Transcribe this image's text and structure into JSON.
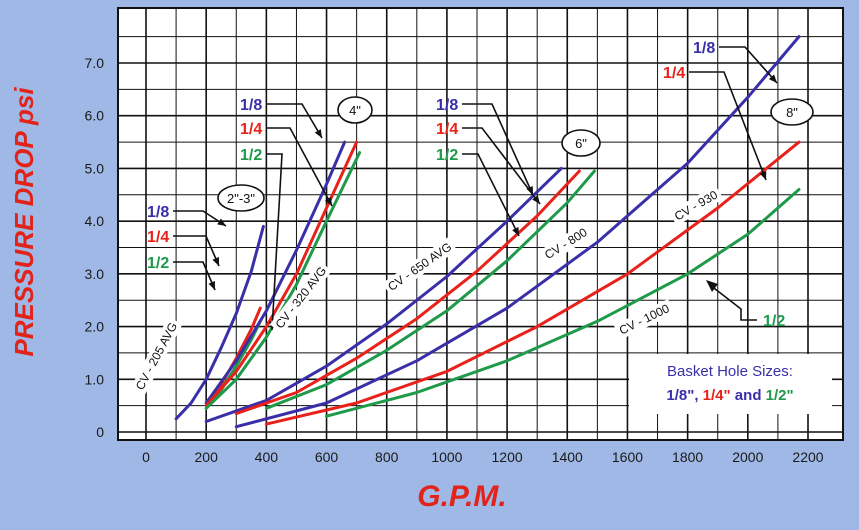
{
  "colors": {
    "blue": "#3a2fa8",
    "red": "#e8221b",
    "green": "#1f9a4a",
    "background": "#9fb8e6",
    "axis_label": "#e2231a"
  },
  "chart_data": {
    "type": "line",
    "title": "",
    "xlabel": "G.P.M.",
    "ylabel": "PRESSURE DROP psi",
    "xlim": [
      0,
      2200
    ],
    "ylim": [
      0,
      7.5
    ],
    "grid": true,
    "x_ticks": [
      "0",
      "200",
      "400",
      "600",
      "800",
      "1000",
      "1200",
      "1400",
      "1600",
      "1800",
      "2000",
      "2200"
    ],
    "y_ticks": [
      "0",
      "1.0",
      "2.0",
      "3.0",
      "4.0",
      "5.0",
      "6.0",
      "7.0"
    ],
    "groups": [
      {
        "size": "2\"-3\"",
        "cv_label": "CV - 205 AVG",
        "hole_labels": [
          "1/8",
          "1/4",
          "1/2"
        ],
        "series": [
          {
            "name": "1/8",
            "color": "blue",
            "points": [
              [
                100,
                0.25
              ],
              [
                150,
                0.55
              ],
              [
                200,
                1.0
              ],
              [
                250,
                1.6
              ],
              [
                300,
                2.25
              ],
              [
                350,
                3.05
              ],
              [
                390,
                3.9
              ]
            ]
          },
          {
            "name": "1/4",
            "color": "red",
            "points": [
              [
                200,
                0.55
              ],
              [
                250,
                0.9
              ],
              [
                300,
                1.4
              ],
              [
                350,
                1.95
              ],
              [
                380,
                2.35
              ]
            ]
          },
          {
            "name": "1/2",
            "color": "green",
            "points": [
              [
                200,
                0.45
              ],
              [
                250,
                0.8
              ],
              [
                300,
                1.25
              ],
              [
                350,
                1.75
              ],
              [
                380,
                2.1
              ]
            ]
          }
        ]
      },
      {
        "size": "4\"",
        "cv_label": "CV - 320 AVG",
        "hole_labels": [
          "1/8",
          "1/4",
          "1/2"
        ],
        "series": [
          {
            "name": "1/8",
            "color": "blue",
            "points": [
              [
                200,
                0.55
              ],
              [
                300,
                1.35
              ],
              [
                400,
                2.3
              ],
              [
                500,
                3.45
              ],
              [
                600,
                4.7
              ],
              [
                660,
                5.5
              ]
            ]
          },
          {
            "name": "1/4",
            "color": "red",
            "points": [
              [
                200,
                0.5
              ],
              [
                300,
                1.15
              ],
              [
                400,
                2.0
              ],
              [
                500,
                3.0
              ],
              [
                600,
                4.25
              ],
              [
                700,
                5.5
              ]
            ]
          },
          {
            "name": "1/2",
            "color": "green",
            "points": [
              [
                200,
                0.45
              ],
              [
                300,
                1.0
              ],
              [
                400,
                1.8
              ],
              [
                500,
                2.8
              ],
              [
                600,
                4.0
              ],
              [
                710,
                5.3
              ]
            ]
          }
        ]
      },
      {
        "size": "6\"",
        "cv_label": "CV - 650 AVG",
        "hole_labels": [
          "1/8",
          "1/4",
          "1/2"
        ],
        "series": [
          {
            "name": "1/8",
            "color": "blue",
            "points": [
              [
                200,
                0.2
              ],
              [
                400,
                0.6
              ],
              [
                600,
                1.25
              ],
              [
                800,
                2.05
              ],
              [
                1000,
                2.95
              ],
              [
                1200,
                4.0
              ],
              [
                1380,
                5.0
              ]
            ]
          },
          {
            "name": "1/4",
            "color": "red",
            "points": [
              [
                300,
                0.35
              ],
              [
                500,
                0.75
              ],
              [
                700,
                1.4
              ],
              [
                900,
                2.15
              ],
              [
                1100,
                3.05
              ],
              [
                1300,
                4.1
              ],
              [
                1440,
                4.95
              ]
            ]
          },
          {
            "name": "1/2",
            "color": "green",
            "points": [
              [
                400,
                0.45
              ],
              [
                600,
                0.9
              ],
              [
                800,
                1.55
              ],
              [
                1000,
                2.3
              ],
              [
                1200,
                3.25
              ],
              [
                1400,
                4.35
              ],
              [
                1490,
                4.95
              ]
            ]
          }
        ]
      },
      {
        "size": "8\"",
        "cv_label": "",
        "hole_labels": [
          "1/8",
          "1/4",
          "1/2"
        ],
        "series": [
          {
            "name": "1/8",
            "color": "blue",
            "points": [
              [
                300,
                0.1
              ],
              [
                600,
                0.55
              ],
              [
                900,
                1.35
              ],
              [
                1200,
                2.35
              ],
              [
                1500,
                3.6
              ],
              [
                1800,
                5.1
              ],
              [
                2000,
                6.35
              ],
              [
                2170,
                7.5
              ]
            ]
          },
          {
            "name": "1/4",
            "color": "red",
            "points": [
              [
                400,
                0.15
              ],
              [
                700,
                0.55
              ],
              [
                1000,
                1.15
              ],
              [
                1300,
                2.0
              ],
              [
                1600,
                3.0
              ],
              [
                1900,
                4.25
              ],
              [
                2170,
                5.5
              ]
            ]
          },
          {
            "name": "1/2",
            "color": "green",
            "points": [
              [
                600,
                0.3
              ],
              [
                900,
                0.75
              ],
              [
                1200,
                1.35
              ],
              [
                1500,
                2.1
              ],
              [
                1800,
                3.0
              ],
              [
                2000,
                3.75
              ],
              [
                2170,
                4.6
              ]
            ]
          }
        ]
      }
    ],
    "annotations": [
      "CV - 800",
      "CV - 930",
      "CV - 1000"
    ],
    "legend": {
      "placement": "bottom-right",
      "title": "Basket Hole Sizes:",
      "items": [
        "1/8\"",
        "1/4\"",
        "1/2\""
      ],
      "joiners": [
        ", ",
        " and "
      ]
    }
  }
}
